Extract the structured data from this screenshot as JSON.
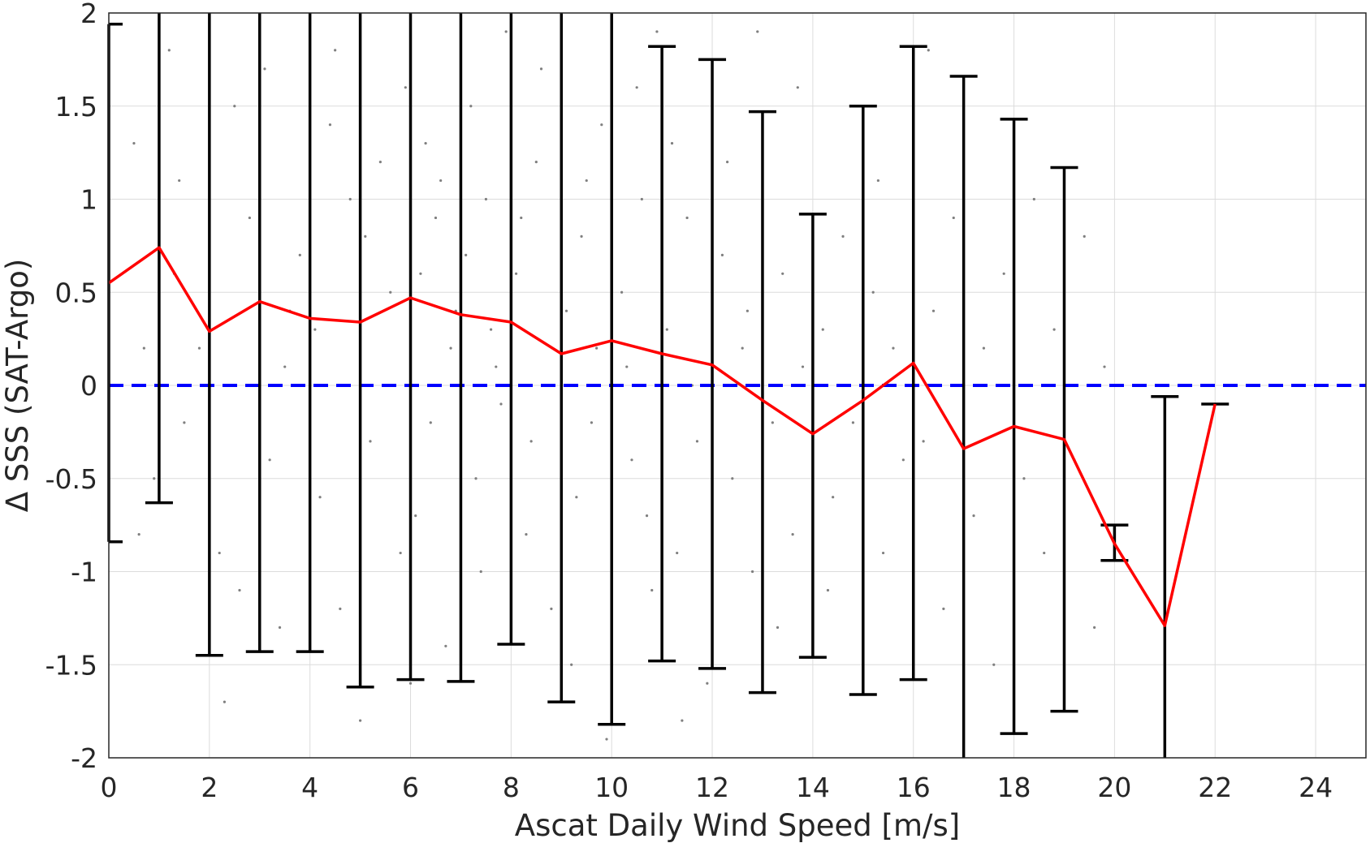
{
  "chart_data": {
    "type": "line",
    "title": "",
    "xlabel": "Ascat Daily Wind Speed [m/s]",
    "ylabel": "Δ SSS (SAT-Argo)",
    "xlim": [
      0,
      25
    ],
    "ylim": [
      -2,
      2
    ],
    "xticks": [
      0,
      2,
      4,
      6,
      8,
      10,
      12,
      14,
      16,
      18,
      20,
      22,
      24
    ],
    "yticks": [
      2,
      1.5,
      1,
      0.5,
      0,
      -0.5,
      -1,
      -1.5,
      -2
    ],
    "ytick_labels": [
      "2",
      "1.5",
      "1",
      "0.5",
      "0",
      "-0.5",
      "-1",
      "-1.5",
      "-2"
    ],
    "grid": true,
    "legend": "none",
    "series": [
      {
        "kind": "mean-line",
        "color": "#ff0000",
        "x": [
          0,
          1,
          2,
          3,
          4,
          5,
          6,
          7,
          8,
          9,
          10,
          11,
          12,
          13,
          14,
          15,
          16,
          17,
          18,
          19,
          20,
          21,
          22
        ],
        "y": [
          0.55,
          0.74,
          0.29,
          0.45,
          0.36,
          0.34,
          0.47,
          0.38,
          0.34,
          0.17,
          0.24,
          0.17,
          0.11,
          -0.08,
          -0.26,
          -0.08,
          0.12,
          -0.34,
          -0.22,
          -0.29,
          -0.85,
          -1.29,
          -0.1
        ]
      },
      {
        "kind": "error-bars",
        "color": "#000000",
        "x": [
          0,
          1,
          2,
          3,
          4,
          5,
          6,
          7,
          8,
          9,
          10,
          11,
          12,
          13,
          14,
          15,
          16,
          17,
          18,
          19,
          20,
          21,
          22
        ],
        "lower": [
          -0.84,
          -0.63,
          -1.45,
          -1.43,
          -1.43,
          -1.62,
          -1.58,
          -1.59,
          -1.39,
          -1.7,
          -1.82,
          -1.48,
          -1.52,
          -1.65,
          -1.46,
          -1.66,
          -1.58,
          -2.05,
          -1.87,
          -1.75,
          -0.94,
          -2.05,
          -0.1
        ],
        "upper": [
          1.94,
          2.05,
          2.05,
          2.05,
          2.05,
          2.05,
          2.05,
          2.05,
          2.05,
          2.05,
          2.05,
          1.82,
          1.75,
          1.47,
          0.92,
          1.5,
          1.82,
          1.66,
          1.43,
          1.17,
          -0.75,
          -0.06,
          -0.1
        ]
      },
      {
        "kind": "reference",
        "color": "#0000ff",
        "style": "dashed",
        "y": 0
      },
      {
        "kind": "scatter-background",
        "color": "#7f7f7f",
        "points": [
          [
            0.5,
            1.3
          ],
          [
            0.7,
            0.2
          ],
          [
            1.2,
            1.8
          ],
          [
            1.5,
            -0.2
          ],
          [
            1.4,
            1.1
          ],
          [
            0.9,
            -0.5
          ],
          [
            0.6,
            -0.8
          ],
          [
            1.3,
            0.6
          ],
          [
            2.3,
            -1.7
          ],
          [
            2.5,
            1.5
          ],
          [
            2.8,
            0.9
          ],
          [
            3.2,
            -0.4
          ],
          [
            3.5,
            0.1
          ],
          [
            3.1,
            1.7
          ],
          [
            2.6,
            -1.1
          ],
          [
            3.4,
            -1.3
          ],
          [
            3.8,
            0.7
          ],
          [
            4.2,
            -0.6
          ],
          [
            4.4,
            1.4
          ],
          [
            4.6,
            -1.2
          ],
          [
            4.1,
            0.3
          ],
          [
            4.8,
            1.0
          ],
          [
            5.2,
            -0.3
          ],
          [
            5.4,
            1.2
          ],
          [
            5.6,
            0.5
          ],
          [
            5.8,
            -0.9
          ],
          [
            5.1,
            0.8
          ],
          [
            5.5,
            0.0
          ],
          [
            5.9,
            1.6
          ],
          [
            6.2,
            0.6
          ],
          [
            6.4,
            -0.2
          ],
          [
            6.6,
            1.1
          ],
          [
            6.8,
            0.2
          ],
          [
            6.1,
            -0.7
          ],
          [
            6.3,
            1.3
          ],
          [
            6.5,
            0.9
          ],
          [
            6.7,
            -1.4
          ],
          [
            6.9,
            0.4
          ],
          [
            7.1,
            0.7
          ],
          [
            7.3,
            -0.5
          ],
          [
            7.5,
            1.0
          ],
          [
            7.7,
            0.1
          ],
          [
            7.2,
            1.5
          ],
          [
            7.4,
            -1.0
          ],
          [
            7.6,
            0.3
          ],
          [
            7.8,
            -0.1
          ],
          [
            8.1,
            0.6
          ],
          [
            8.3,
            -0.8
          ],
          [
            8.5,
            1.2
          ],
          [
            8.7,
            0.0
          ],
          [
            8.2,
            0.9
          ],
          [
            8.4,
            -0.3
          ],
          [
            8.6,
            1.7
          ],
          [
            8.8,
            -1.2
          ],
          [
            9.1,
            0.4
          ],
          [
            9.3,
            -0.6
          ],
          [
            9.5,
            1.1
          ],
          [
            9.7,
            0.2
          ],
          [
            9.2,
            -1.5
          ],
          [
            9.4,
            0.8
          ],
          [
            9.6,
            -0.2
          ],
          [
            9.8,
            1.4
          ],
          [
            10.2,
            0.5
          ],
          [
            10.4,
            -0.4
          ],
          [
            10.6,
            1.0
          ],
          [
            10.8,
            -1.1
          ],
          [
            10.3,
            0.1
          ],
          [
            10.5,
            1.6
          ],
          [
            10.7,
            -0.7
          ],
          [
            11.1,
            0.3
          ],
          [
            11.3,
            -0.9
          ],
          [
            11.5,
            0.9
          ],
          [
            11.7,
            -0.3
          ],
          [
            11.2,
            1.3
          ],
          [
            11.6,
            0.0
          ],
          [
            11.9,
            -1.6
          ],
          [
            12.2,
            0.7
          ],
          [
            12.4,
            -0.5
          ],
          [
            12.6,
            0.2
          ],
          [
            12.8,
            -1.0
          ],
          [
            12.3,
            1.2
          ],
          [
            12.7,
            0.4
          ],
          [
            13.2,
            -0.2
          ],
          [
            13.4,
            0.6
          ],
          [
            13.6,
            -0.8
          ],
          [
            13.8,
            0.1
          ],
          [
            13.3,
            -1.3
          ],
          [
            14.2,
            0.3
          ],
          [
            14.4,
            -0.6
          ],
          [
            14.6,
            0.8
          ],
          [
            14.8,
            -0.2
          ],
          [
            14.3,
            -1.1
          ],
          [
            15.2,
            0.5
          ],
          [
            15.4,
            -0.9
          ],
          [
            15.6,
            0.2
          ],
          [
            15.8,
            -0.4
          ],
          [
            15.3,
            1.1
          ],
          [
            16.2,
            -0.3
          ],
          [
            16.4,
            0.4
          ],
          [
            16.6,
            -1.2
          ],
          [
            16.8,
            0.9
          ],
          [
            16.3,
            1.8
          ],
          [
            17.2,
            -0.7
          ],
          [
            17.4,
            0.2
          ],
          [
            17.6,
            -1.5
          ],
          [
            17.8,
            0.6
          ],
          [
            18.2,
            -0.5
          ],
          [
            18.4,
            1.0
          ],
          [
            18.6,
            -0.9
          ],
          [
            18.8,
            0.3
          ],
          [
            19.2,
            -0.4
          ],
          [
            19.4,
            0.8
          ],
          [
            19.6,
            -1.3
          ],
          [
            19.8,
            0.1
          ],
          [
            13.7,
            1.6
          ],
          [
            12.9,
            1.9
          ],
          [
            11.4,
            -1.8
          ],
          [
            10.9,
            1.9
          ],
          [
            9.9,
            -1.9
          ],
          [
            8.9,
            -1.7
          ],
          [
            7.9,
            1.9
          ],
          [
            6.0,
            -1.6
          ],
          [
            5.0,
            -1.8
          ],
          [
            4.5,
            1.8
          ],
          [
            3.6,
            0.4
          ],
          [
            2.9,
            0.0
          ],
          [
            2.2,
            -0.9
          ],
          [
            1.8,
            0.2
          ]
        ]
      }
    ]
  }
}
